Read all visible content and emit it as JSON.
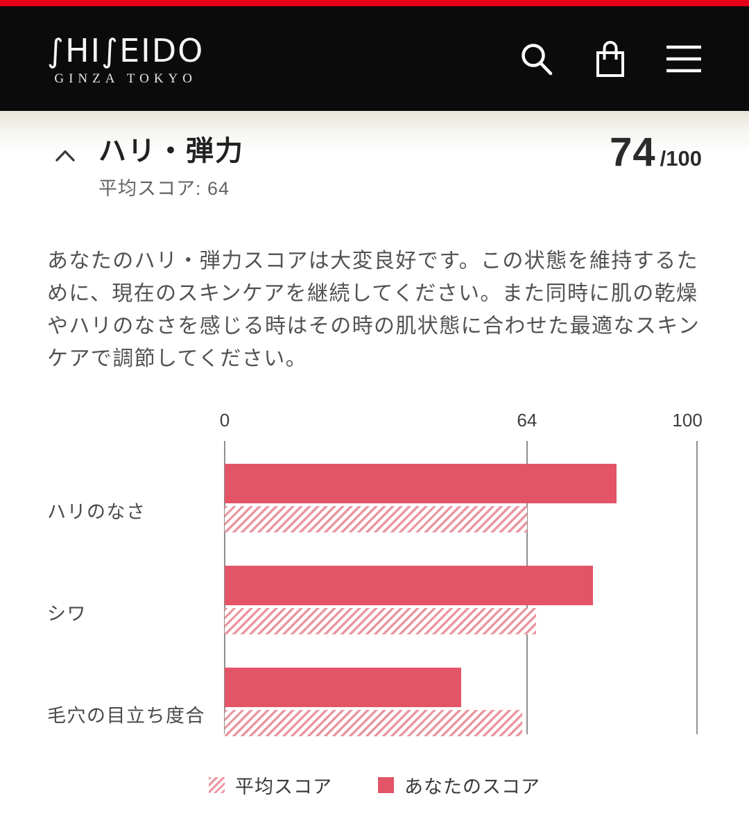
{
  "header": {
    "brand": "SHISEIDO",
    "logo_display": "∫HI∫EIDO",
    "logo_subtitle": "GINZA TOKYO",
    "icons": [
      {
        "name": "search-icon"
      },
      {
        "name": "shopping-bag-icon"
      },
      {
        "name": "menu-icon"
      }
    ]
  },
  "score_section": {
    "title": "ハリ・弾力",
    "average_score_label": "平均スコア: 64",
    "score_value": "74",
    "score_denominator": "/100"
  },
  "description": "あなたのハリ・弾力スコアは大変良好です。この状態を維持するために、現在のスキンケアを継続してください。また同時に肌の乾燥やハリのなさを感じる時はその時の肌状態に合わせた最適なスキンケアで調節してください。",
  "chart_data": {
    "type": "bar",
    "orientation": "horizontal",
    "categories": [
      "ハリのなさ",
      "シワ",
      "毛穴の目立ち度合"
    ],
    "series": [
      {
        "name": "あなたのスコア",
        "style": "solid",
        "color": "#e25466",
        "values": [
          83,
          78,
          50
        ]
      },
      {
        "name": "平均スコア",
        "style": "hatched",
        "color": "#ea96a1",
        "values": [
          64,
          66,
          63
        ]
      }
    ],
    "xlim": [
      0,
      100
    ],
    "ticks": [
      0,
      64,
      100
    ],
    "grid": "vertical-ticks-only",
    "legend_position": "bottom",
    "legend_order": [
      "平均スコア",
      "あなたのスコア"
    ]
  },
  "legend": {
    "average_label": "平均スコア",
    "your_label": "あなたのスコア"
  },
  "colors": {
    "top_strip": "#e60019",
    "header_bg": "#0b0b0b",
    "solid_bar": "#e25466",
    "hatch_pink": "#ea96a1",
    "gridline": "#8f8f8f",
    "divider": "#cbcbcb"
  }
}
